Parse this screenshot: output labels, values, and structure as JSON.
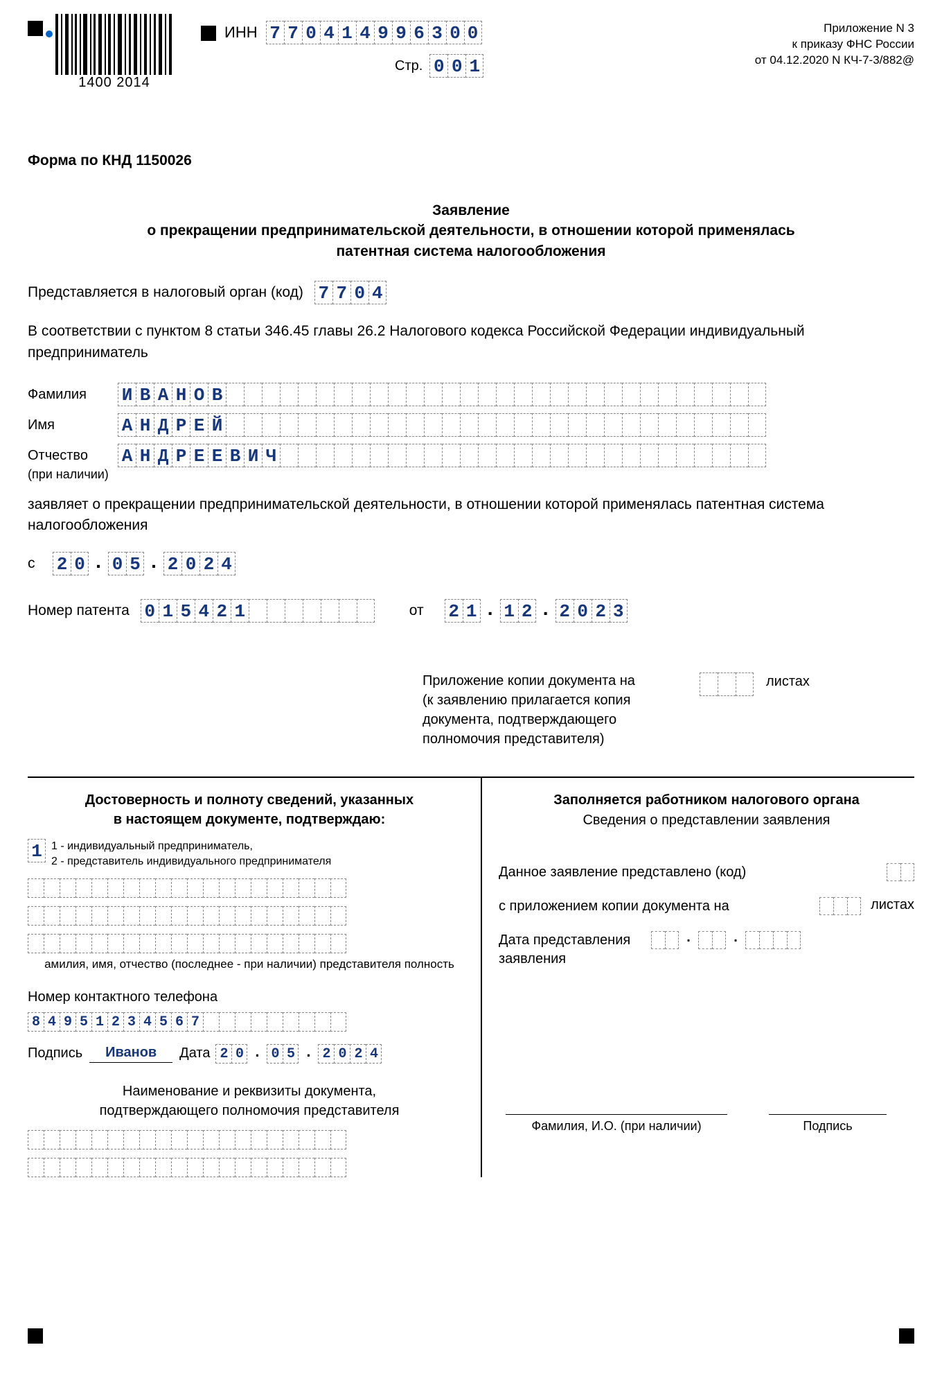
{
  "barcode_numbers": "1400  2014",
  "inn_label": "ИНН",
  "inn": [
    "7",
    "7",
    "0",
    "4",
    "1",
    "4",
    "9",
    "9",
    "6",
    "3",
    "0",
    "0"
  ],
  "page_label": "Стр.",
  "page_num": [
    "0",
    "0",
    "1"
  ],
  "top_right_1": "Приложение N 3",
  "top_right_2": "к приказу ФНС России",
  "top_right_3": "от 04.12.2020 N КЧ-7-3/882@",
  "knd": "Форма по КНД 1150026",
  "title_1": "Заявление",
  "title_2": "о прекращении предпринимательской деятельности, в отношении которой применялась",
  "title_3": "патентная система налогообложения",
  "tax_org_label": "Представляется в налоговый орган (код)",
  "tax_org": [
    "7",
    "7",
    "0",
    "4"
  ],
  "law_ref": "В соответствии с пунктом 8 статьи 346.45 главы 26.2 Налогового кодекса Российской Федерации индивидуальный предприниматель",
  "surname_label": "Фамилия",
  "surname": [
    "И",
    "В",
    "А",
    "Н",
    "О",
    "В"
  ],
  "name_label": "Имя",
  "name": [
    "А",
    "Н",
    "Д",
    "Р",
    "Е",
    "Й"
  ],
  "patronymic_label": "Отчество",
  "patronymic_note": "(при наличии)",
  "patronymic": [
    "А",
    "Н",
    "Д",
    "Р",
    "Е",
    "Е",
    "В",
    "И",
    "Ч"
  ],
  "fio_cells": 36,
  "declares": "заявляет о прекращении предпринимательской деятельности, в отношении которой применялась патентная система налогообложения",
  "from_label": "с",
  "stop_date": {
    "d": [
      "2",
      "0"
    ],
    "m": [
      "0",
      "5"
    ],
    "y": [
      "2",
      "0",
      "2",
      "4"
    ]
  },
  "patent_label": "Номер патента",
  "patent": [
    "0",
    "1",
    "5",
    "4",
    "2",
    "1",
    "",
    "",
    "",
    "",
    "",
    "",
    ""
  ],
  "patent_from_label": "от",
  "patent_date": {
    "d": [
      "2",
      "1"
    ],
    "m": [
      "1",
      "2"
    ],
    "y": [
      "2",
      "0",
      "2",
      "3"
    ]
  },
  "attach_text_1": "Приложение копии документа на",
  "attach_text_2": "(к заявлению прилагается копия документа, подтверждающего полномочия представителя)",
  "leaves": "листах",
  "left_title_1": "Достоверность и полноту сведений, указанных",
  "left_title_2": "в настоящем документе, подтверждаю:",
  "confirmer": "1",
  "confirmer_legend_1": "1 - индивидуальный предприниматель,",
  "confirmer_legend_2": "2 - представитель индивидуального предпринимателя",
  "rep_rows_cells": 20,
  "rep_caption": "амилия, имя, отчество (последнее - при наличии) представителя полность",
  "phone_label": "Номер контактного телефона",
  "phone": [
    "8",
    "4",
    "9",
    "5",
    "1",
    "2",
    "3",
    "4",
    "5",
    "6",
    "7",
    "",
    "",
    "",
    "",
    "",
    "",
    "",
    "",
    ""
  ],
  "sign_label": "Подпись",
  "signature": "Иванов",
  "date_label": "Дата",
  "sign_date": {
    "d": [
      "2",
      "0"
    ],
    "m": [
      "0",
      "5"
    ],
    "y": [
      "2",
      "0",
      "2",
      "4"
    ]
  },
  "doc_title_1": "Наименование и реквизиты документа,",
  "doc_title_2": "подтверждающего полномочия представителя",
  "right_title": "Заполняется работником налогового органа",
  "right_sub": "Сведения о представлении заявления",
  "right_row1": "Данное заявление представлено (код)",
  "right_row2": "с приложением копии документа на",
  "right_row3": "Дата представления заявления",
  "fio_caption": "Фамилия, И.О. (при наличии)",
  "sig_caption": "Подпись"
}
